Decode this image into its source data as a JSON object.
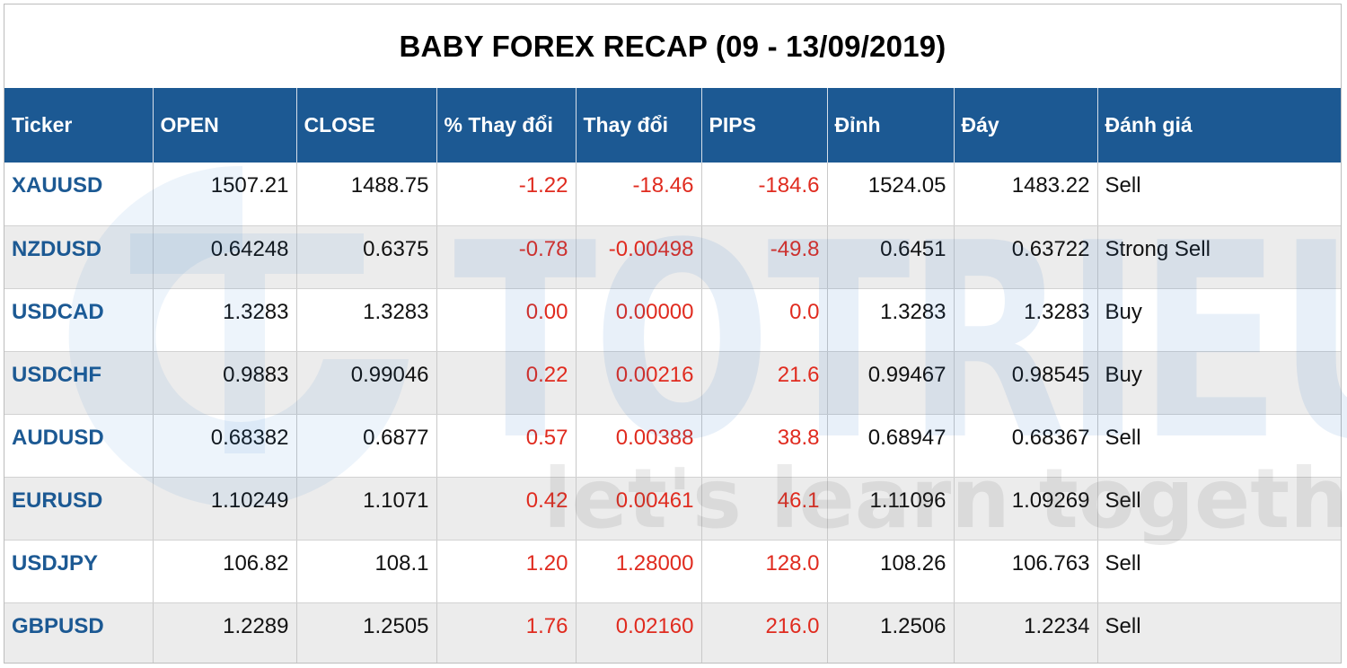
{
  "title": "BABY FOREX RECAP (09 - 13/09/2019)",
  "columns": [
    "Ticker",
    "OPEN",
    "CLOSE",
    "% Thay đổi",
    "Thay đổi",
    "PIPS",
    "Đỉnh",
    "Đáy",
    "Đánh giá"
  ],
  "rows": [
    {
      "ticker": "XAUUSD",
      "open": "1507.21",
      "close": "1488.75",
      "pct": "-1.22",
      "change": "-18.46",
      "pips": "-184.6",
      "high": "1524.05",
      "low": "1483.22",
      "rating": "Sell"
    },
    {
      "ticker": "NZDUSD",
      "open": "0.64248",
      "close": "0.6375",
      "pct": "-0.78",
      "change": "-0.00498",
      "pips": "-49.8",
      "high": "0.6451",
      "low": "0.63722",
      "rating": "Strong Sell"
    },
    {
      "ticker": "USDCAD",
      "open": "1.3283",
      "close": "1.3283",
      "pct": "0.00",
      "change": "0.00000",
      "pips": "0.0",
      "high": "1.3283",
      "low": "1.3283",
      "rating": "Buy"
    },
    {
      "ticker": "USDCHF",
      "open": "0.9883",
      "close": "0.99046",
      "pct": "0.22",
      "change": "0.00216",
      "pips": "21.6",
      "high": "0.99467",
      "low": "0.98545",
      "rating": "Buy"
    },
    {
      "ticker": "AUDUSD",
      "open": "0.68382",
      "close": "0.6877",
      "pct": "0.57",
      "change": "0.00388",
      "pips": "38.8",
      "high": "0.68947",
      "low": "0.68367",
      "rating": "Sell"
    },
    {
      "ticker": "EURUSD",
      "open": "1.10249",
      "close": "1.1071",
      "pct": "0.42",
      "change": "0.00461",
      "pips": "46.1",
      "high": "1.11096",
      "low": "1.09269",
      "rating": "Sell"
    },
    {
      "ticker": "USDJPY",
      "open": "106.82",
      "close": "108.1",
      "pct": "1.20",
      "change": "1.28000",
      "pips": "128.0",
      "high": "108.26",
      "low": "106.763",
      "rating": "Sell"
    },
    {
      "ticker": "GBPUSD",
      "open": "1.2289",
      "close": "1.2505",
      "pct": "1.76",
      "change": "0.02160",
      "pips": "216.0",
      "high": "1.2506",
      "low": "1.2234",
      "rating": "Sell"
    }
  ],
  "watermark": {
    "brand": "TOTRIEU",
    "slogan": "let's learn together",
    "logo_icon": "totrieu-logo-icon"
  },
  "colors": {
    "header_bg": "#1c5993",
    "ticker_text": "#1c5993",
    "change_text": "#e02b1f",
    "row_alt": "#ececec"
  }
}
